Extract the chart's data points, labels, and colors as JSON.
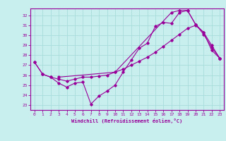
{
  "xlabel": "Windchill (Refroidissement éolien,°C)",
  "bg_color": "#c8eeee",
  "line_color": "#990099",
  "grid_color": "#aadddd",
  "axis_color": "#990099",
  "xlim": [
    -0.5,
    23.5
  ],
  "ylim": [
    22.5,
    32.7
  ],
  "yticks": [
    23,
    24,
    25,
    26,
    27,
    28,
    29,
    30,
    31,
    32
  ],
  "xticks": [
    0,
    1,
    2,
    3,
    4,
    5,
    6,
    7,
    8,
    9,
    10,
    11,
    12,
    13,
    14,
    15,
    16,
    17,
    18,
    19,
    20,
    21,
    22,
    23
  ],
  "line1_x": [
    0,
    1,
    2,
    3,
    4,
    5,
    6,
    7,
    8,
    9,
    10,
    11,
    12,
    13,
    14,
    15,
    16,
    17,
    18,
    19,
    20,
    21,
    22,
    23
  ],
  "line1_y": [
    27.3,
    26.1,
    25.8,
    25.2,
    24.8,
    25.2,
    25.3,
    23.1,
    23.9,
    24.4,
    25.0,
    26.3,
    27.5,
    28.7,
    29.2,
    30.9,
    31.3,
    31.2,
    32.3,
    32.5,
    31.1,
    30.1,
    28.8,
    27.7
  ],
  "line2_x": [
    0,
    1,
    2,
    3,
    4,
    5,
    6,
    7,
    8,
    9,
    10,
    11,
    12,
    13,
    14,
    15,
    16,
    17,
    18,
    19,
    20,
    21,
    22,
    23
  ],
  "line2_y": [
    27.3,
    26.1,
    25.8,
    25.6,
    25.4,
    25.6,
    25.8,
    25.8,
    25.9,
    26.0,
    26.3,
    26.6,
    27.0,
    27.4,
    27.8,
    28.3,
    28.9,
    29.5,
    30.1,
    30.7,
    31.0,
    30.3,
    28.5,
    27.7
  ],
  "line3_x": [
    3,
    10,
    17,
    18,
    19,
    20,
    21,
    22,
    23
  ],
  "line3_y": [
    25.8,
    26.3,
    32.3,
    32.5,
    32.5,
    31.1,
    30.3,
    29.0,
    27.7
  ]
}
